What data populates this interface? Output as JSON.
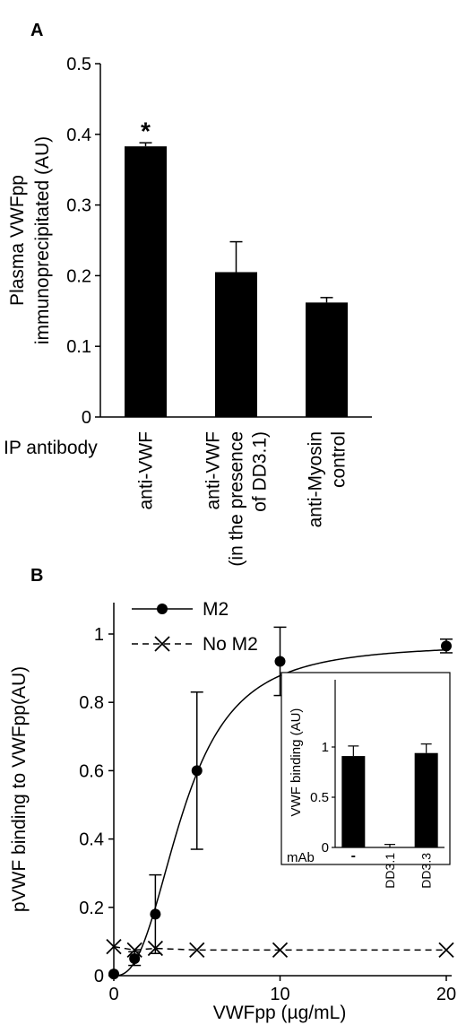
{
  "chart_data": [
    {
      "panel": "A",
      "type": "bar",
      "ylabel_lines": [
        "Plasma VWFpp",
        "immunoprecipitated (AU)"
      ],
      "xlabel": "IP antibody",
      "category_lines": [
        [
          "anti-VWF"
        ],
        [
          "anti-VWF",
          "(in the presence",
          "of  DD3.1)"
        ],
        [
          "anti-Myosin",
          "control"
        ]
      ],
      "values": [
        0.383,
        0.205,
        0.162
      ],
      "errors": [
        0.005,
        0.043,
        0.007
      ],
      "annotations": [
        "*",
        "",
        ""
      ],
      "ylim": [
        0,
        0.5
      ],
      "yticks": [
        0,
        0.1,
        0.2,
        0.3,
        0.4,
        0.5
      ],
      "ytick_labels": [
        "0",
        "0.1",
        "0.2",
        "0.3",
        "0.4",
        "0.5"
      ],
      "bar_color": "#000000"
    },
    {
      "panel": "B",
      "type": "line",
      "xlabel": "VWFpp (µg/mL)",
      "ylabel": "pVWF binding to VWFpp(AU)",
      "xlim": [
        0,
        20
      ],
      "ylim": [
        0,
        1
      ],
      "xticks": [
        0,
        10,
        20
      ],
      "xtick_labels": [
        "0",
        "10",
        "20"
      ],
      "yticks": [
        0,
        0.2,
        0.4,
        0.6,
        0.8,
        1
      ],
      "ytick_labels": [
        "0",
        "0.2",
        "0.4",
        "0.6",
        "0.8",
        "1"
      ],
      "series": [
        {
          "name": "M2",
          "marker": "circle",
          "line": "solid",
          "x": [
            0,
            1.25,
            2.5,
            5,
            10,
            20
          ],
          "y": [
            0.005,
            0.05,
            0.18,
            0.6,
            0.92,
            0.965
          ],
          "yerr": [
            0,
            0.02,
            0.115,
            0.23,
            0.1,
            0.02
          ]
        },
        {
          "name": "No M2",
          "marker": "x",
          "line": "dashed",
          "x": [
            0,
            1.25,
            2.5,
            5,
            10,
            20
          ],
          "y": [
            0.085,
            0.075,
            0.08,
            0.075,
            0.075,
            0.075
          ],
          "yerr": [
            0,
            0,
            0,
            0,
            0,
            0
          ]
        }
      ],
      "legend": "top-left",
      "inset": {
        "type": "bar",
        "ylabel": "VWF binding (AU)",
        "xlabel": "mAb",
        "categories": [
          "-",
          "DD3.1",
          "DD3.3"
        ],
        "values": [
          0.91,
          0.0,
          0.94
        ],
        "errors": [
          0.1,
          0.03,
          0.09
        ],
        "ylim": [
          0,
          1.1
        ],
        "yticks": [
          0,
          0.5,
          1
        ],
        "ytick_labels": [
          "0",
          "0.5",
          "1"
        ]
      }
    }
  ],
  "labels": {
    "panel_a": "A",
    "panel_b": "B"
  },
  "colors": {
    "ink": "#000000",
    "background": "#ffffff"
  }
}
